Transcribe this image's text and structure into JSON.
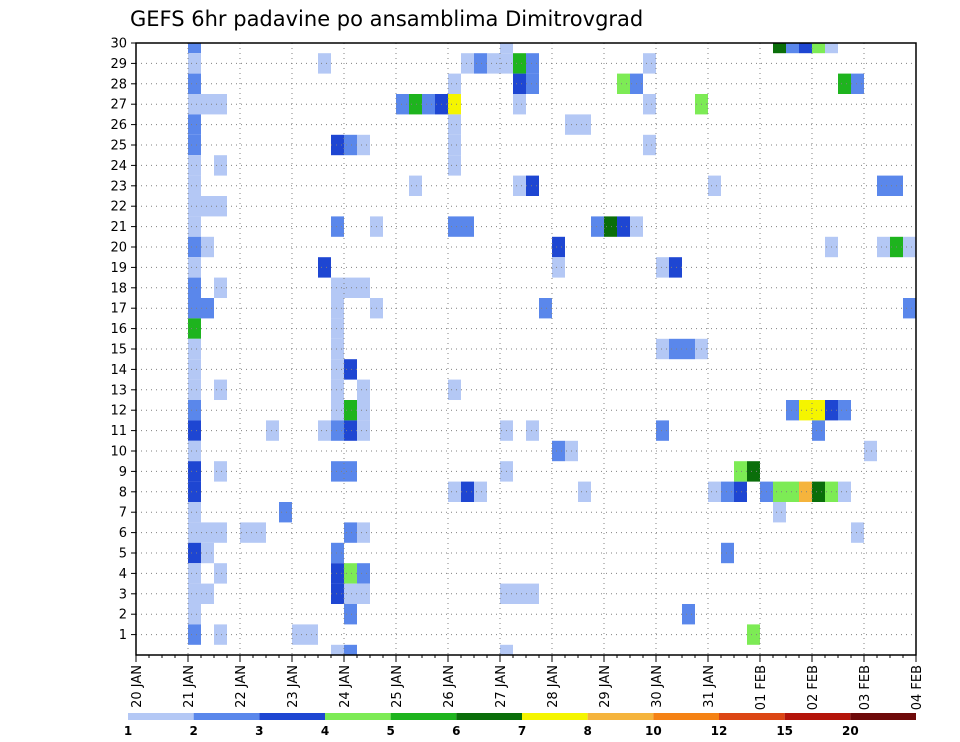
{
  "chart_data": {
    "type": "heatmap",
    "title": "GEFS 6hr padavine po ansamblima Dimitrovgrad",
    "xlabel": "",
    "ylabel": "",
    "x_tick_labels": [
      "20 JAN",
      "21 JAN",
      "22 JAN",
      "23 JAN",
      "24 JAN",
      "25 JAN",
      "26 JAN",
      "27 JAN",
      "28 JAN",
      "29 JAN",
      "30 JAN",
      "31 JAN",
      "01 FEB",
      "02 FEB",
      "03 FEB",
      "04 FEB"
    ],
    "x_range_days": [
      0,
      15
    ],
    "x_step_days": 0.25,
    "y_tick_labels": [
      "1",
      "2",
      "3",
      "4",
      "5",
      "6",
      "7",
      "8",
      "9",
      "10",
      "11",
      "12",
      "13",
      "14",
      "15",
      "16",
      "17",
      "18",
      "19",
      "20",
      "21",
      "22",
      "23",
      "24",
      "25",
      "26",
      "27",
      "28",
      "29",
      "30"
    ],
    "y_range": [
      0,
      30
    ],
    "grid": true,
    "grid_style": "dotted",
    "legend_position": "bottom",
    "colorbar_labels": [
      "1",
      "2",
      "3",
      "4",
      "5",
      "6",
      "7",
      "8",
      "10",
      "12",
      "15",
      "20"
    ],
    "levels": [
      1,
      2,
      3,
      4,
      5,
      6,
      7,
      8,
      10,
      12,
      15,
      20
    ],
    "colors": [
      "#b4c8f5",
      "#5a87eb",
      "#1e46d2",
      "#7deb55",
      "#1eb41e",
      "#0a6e0a",
      "#f5f500",
      "#f5b43c",
      "#f58214",
      "#dc4614",
      "#b4140a",
      "#6e0a0a"
    ],
    "cells": [
      [
        1,
        30,
        2
      ],
      [
        1,
        29,
        1
      ],
      [
        1,
        28,
        2
      ],
      [
        1,
        27,
        1
      ],
      [
        1,
        26,
        2
      ],
      [
        1,
        25,
        2
      ],
      [
        1,
        24,
        1
      ],
      [
        1,
        23,
        1
      ],
      [
        1,
        22,
        1
      ],
      [
        1,
        21,
        1
      ],
      [
        1,
        20,
        2
      ],
      [
        1,
        19,
        1
      ],
      [
        1,
        18,
        2
      ],
      [
        1,
        17,
        2
      ],
      [
        1,
        16,
        5
      ],
      [
        1,
        15,
        1
      ],
      [
        1,
        14,
        1
      ],
      [
        1,
        13,
        1
      ],
      [
        1,
        12,
        2
      ],
      [
        1,
        11,
        3
      ],
      [
        1,
        10,
        1
      ],
      [
        1,
        9,
        3
      ],
      [
        1,
        8,
        3
      ],
      [
        1,
        7,
        1
      ],
      [
        1,
        6,
        1
      ],
      [
        1,
        5,
        3
      ],
      [
        1,
        4,
        1
      ],
      [
        1,
        3,
        1
      ],
      [
        1,
        2,
        1
      ],
      [
        1,
        1,
        2
      ],
      [
        1.25,
        27,
        1
      ],
      [
        1.5,
        27,
        1
      ],
      [
        1.25,
        22,
        1
      ],
      [
        1.5,
        22,
        1
      ],
      [
        1.25,
        20,
        1
      ],
      [
        1.5,
        18,
        1
      ],
      [
        1.25,
        17,
        2
      ],
      [
        1.5,
        13,
        1
      ],
      [
        1.5,
        9,
        1
      ],
      [
        1.25,
        6,
        1
      ],
      [
        1.5,
        6,
        1
      ],
      [
        1.25,
        5,
        1
      ],
      [
        1.5,
        4,
        1
      ],
      [
        1.25,
        3,
        1
      ],
      [
        1.5,
        1,
        1
      ],
      [
        1.5,
        24,
        1
      ],
      [
        2,
        6,
        1
      ],
      [
        2.25,
        6,
        1
      ],
      [
        2.5,
        11,
        1
      ],
      [
        2.75,
        7,
        2
      ],
      [
        3,
        1,
        1
      ],
      [
        3.25,
        1,
        1
      ],
      [
        3.5,
        19,
        3
      ],
      [
        3.5,
        29,
        1
      ],
      [
        3.5,
        11,
        1
      ],
      [
        3.75,
        25,
        3
      ],
      [
        4,
        25,
        2
      ],
      [
        4.25,
        25,
        1
      ],
      [
        3.75,
        18,
        1
      ],
      [
        4,
        18,
        1
      ],
      [
        4.25,
        18,
        1
      ],
      [
        3.75,
        17,
        1
      ],
      [
        3.75,
        16,
        1
      ],
      [
        3.75,
        15,
        1
      ],
      [
        3.75,
        14,
        1
      ],
      [
        4,
        14,
        3
      ],
      [
        3.75,
        13,
        1
      ],
      [
        4.25,
        13,
        1
      ],
      [
        3.75,
        12,
        1
      ],
      [
        4,
        12,
        5
      ],
      [
        4.25,
        12,
        1
      ],
      [
        3.75,
        11,
        2
      ],
      [
        4,
        11,
        3
      ],
      [
        4.25,
        11,
        1
      ],
      [
        3.75,
        9,
        2
      ],
      [
        4,
        9,
        2
      ],
      [
        4,
        6,
        2
      ],
      [
        4.25,
        6,
        1
      ],
      [
        3.75,
        5,
        2
      ],
      [
        3.75,
        4,
        3
      ],
      [
        4,
        4,
        4
      ],
      [
        4.25,
        4,
        2
      ],
      [
        3.75,
        3,
        3
      ],
      [
        4,
        3,
        1
      ],
      [
        4.25,
        3,
        1
      ],
      [
        4,
        2,
        2
      ],
      [
        3.75,
        21,
        2
      ],
      [
        4.5,
        21,
        1
      ],
      [
        4.5,
        17,
        1
      ],
      [
        5,
        27,
        2
      ],
      [
        5.25,
        27,
        5
      ],
      [
        5.5,
        27,
        2
      ],
      [
        5.25,
        23,
        1
      ],
      [
        5.75,
        27,
        3
      ],
      [
        6,
        27,
        7
      ],
      [
        6,
        28,
        1
      ],
      [
        6,
        26,
        1
      ],
      [
        6,
        25,
        1
      ],
      [
        6,
        24,
        1
      ],
      [
        6,
        21,
        2
      ],
      [
        6.25,
        21,
        2
      ],
      [
        6,
        13,
        1
      ],
      [
        6,
        8,
        1
      ],
      [
        6.25,
        8,
        3
      ],
      [
        6.5,
        8,
        1
      ],
      [
        6.25,
        29,
        1
      ],
      [
        6.5,
        29,
        2
      ],
      [
        6.75,
        29,
        1
      ],
      [
        7,
        29,
        1
      ],
      [
        7,
        30,
        1
      ],
      [
        7.25,
        29,
        5
      ],
      [
        7.5,
        29,
        2
      ],
      [
        7.25,
        28,
        3
      ],
      [
        7.5,
        28,
        2
      ],
      [
        7.25,
        27,
        1
      ],
      [
        7.25,
        23,
        1
      ],
      [
        7.5,
        23,
        3
      ],
      [
        7,
        11,
        1
      ],
      [
        7.5,
        11,
        1
      ],
      [
        7,
        9,
        1
      ],
      [
        7,
        3,
        1
      ],
      [
        7.25,
        3,
        1
      ],
      [
        7.5,
        3,
        1
      ],
      [
        7.75,
        17,
        2
      ],
      [
        8.25,
        26,
        1
      ],
      [
        8.5,
        26,
        1
      ],
      [
        8,
        20,
        3
      ],
      [
        8,
        19,
        1
      ],
      [
        8,
        10,
        2
      ],
      [
        8.25,
        10,
        1
      ],
      [
        8.5,
        8,
        1
      ],
      [
        8.75,
        21,
        2
      ],
      [
        9,
        21,
        6
      ],
      [
        9.25,
        21,
        3
      ],
      [
        9.5,
        21,
        1
      ],
      [
        9.25,
        28,
        4
      ],
      [
        9.5,
        28,
        2
      ],
      [
        9.75,
        29,
        1
      ],
      [
        9.75,
        27,
        1
      ],
      [
        9.75,
        25,
        1
      ],
      [
        10,
        19,
        1
      ],
      [
        10.25,
        19,
        3
      ],
      [
        10,
        15,
        1
      ],
      [
        10.25,
        15,
        2
      ],
      [
        10.5,
        15,
        2
      ],
      [
        10.75,
        15,
        1
      ],
      [
        10,
        11,
        2
      ],
      [
        10.5,
        2,
        2
      ],
      [
        10.75,
        27,
        4
      ],
      [
        11,
        23,
        1
      ],
      [
        11,
        8,
        1
      ],
      [
        11.25,
        8,
        2
      ],
      [
        11.5,
        8,
        3
      ],
      [
        11.25,
        5,
        2
      ],
      [
        11.5,
        9,
        4
      ],
      [
        11.75,
        9,
        6
      ],
      [
        11.75,
        1,
        4
      ],
      [
        12,
        8,
        2
      ],
      [
        12.25,
        8,
        4
      ],
      [
        12.5,
        8,
        4
      ],
      [
        12.75,
        8,
        8
      ],
      [
        13,
        8,
        6
      ],
      [
        13.25,
        8,
        4
      ],
      [
        13.5,
        8,
        1
      ],
      [
        12.25,
        7,
        1
      ],
      [
        12.25,
        30,
        6
      ],
      [
        12.5,
        30,
        2
      ],
      [
        12.75,
        30,
        3
      ],
      [
        13,
        30,
        4
      ],
      [
        13.25,
        30,
        1
      ],
      [
        12.5,
        12,
        2
      ],
      [
        12.75,
        12,
        7
      ],
      [
        13,
        12,
        7
      ],
      [
        13.25,
        12,
        3
      ],
      [
        13.5,
        12,
        2
      ],
      [
        13,
        11,
        2
      ],
      [
        13.5,
        28,
        5
      ],
      [
        13.75,
        28,
        2
      ],
      [
        13.75,
        6,
        1
      ],
      [
        14,
        10,
        1
      ],
      [
        13.25,
        20,
        1
      ],
      [
        14.25,
        20,
        1
      ],
      [
        14.5,
        20,
        5
      ],
      [
        14.75,
        20,
        1
      ],
      [
        14.25,
        23,
        2
      ],
      [
        14.5,
        23,
        2
      ],
      [
        14.75,
        17,
        2
      ],
      [
        3.75,
        0,
        1
      ],
      [
        4,
        0,
        2
      ],
      [
        7,
        0,
        1
      ]
    ]
  }
}
